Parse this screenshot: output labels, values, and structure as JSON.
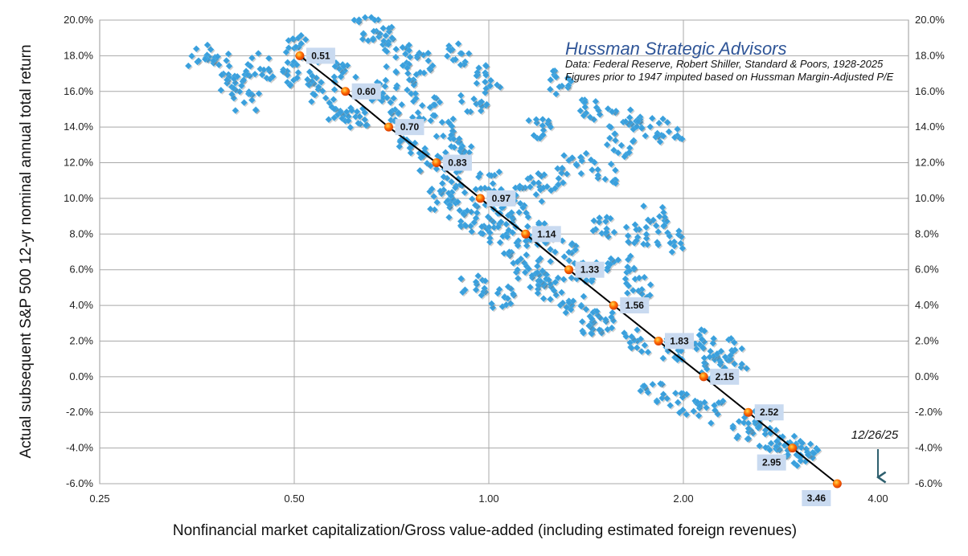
{
  "chart_data": {
    "type": "scatter",
    "title": "Hussman Strategic Advisors",
    "subtitle_lines": [
      "Data: Federal Reserve, Robert Shiller, Standard & Poors, 1928-2025",
      "Figures prior to 1947 imputed based on Hussman Margin-Adjusted P/E"
    ],
    "xlabel": "Nonfinancial market capitalization/Gross value-added (including estimated foreign revenues)",
    "ylabel": "Actual subsequent S&P 500 12-yr nominal annual total return",
    "x_scale": "log2",
    "xlim": [
      0.25,
      4.6
    ],
    "ylim": [
      -6,
      20
    ],
    "x_ticks": [
      "0.25",
      "0.50",
      "1.00",
      "2.00",
      "4.00"
    ],
    "x_tick_values": [
      0.25,
      0.5,
      1,
      2,
      4
    ],
    "y_ticks": [
      "-6.0%",
      "-4.0%",
      "-2.0%",
      "0.0%",
      "2.0%",
      "4.0%",
      "6.0%",
      "8.0%",
      "10.0%",
      "12.0%",
      "14.0%",
      "16.0%",
      "18.0%",
      "20.0%"
    ],
    "y_tick_values": [
      -6,
      -4,
      -2,
      0,
      2,
      4,
      6,
      8,
      10,
      12,
      14,
      16,
      18,
      20
    ],
    "grid": true,
    "colors": {
      "scatter": "#3a9fdc",
      "fit_line": "#000000",
      "fit_point": "#ff5a00",
      "label_bg": "#c9daf0",
      "brand": "#2f5597",
      "arrow": "#2e5f6e"
    },
    "fit_points": [
      {
        "x": 0.51,
        "y": 18,
        "label": "0.51"
      },
      {
        "x": 0.6,
        "y": 16,
        "label": "0.60"
      },
      {
        "x": 0.7,
        "y": 14,
        "label": "0.70"
      },
      {
        "x": 0.83,
        "y": 12,
        "label": "0.83"
      },
      {
        "x": 0.97,
        "y": 10,
        "label": "0.97"
      },
      {
        "x": 1.14,
        "y": 8,
        "label": "1.14"
      },
      {
        "x": 1.33,
        "y": 6,
        "label": "1.33"
      },
      {
        "x": 1.56,
        "y": 4,
        "label": "1.56"
      },
      {
        "x": 1.83,
        "y": 2,
        "label": "1.83"
      },
      {
        "x": 2.15,
        "y": 0,
        "label": "2.15"
      },
      {
        "x": 2.52,
        "y": -2,
        "label": "2.52"
      },
      {
        "x": 2.95,
        "y": -4,
        "label": "2.95"
      },
      {
        "x": 3.46,
        "y": -6,
        "label": "3.46"
      }
    ],
    "observations": [
      [
        0.36,
        18
      ],
      [
        0.38,
        17.5
      ],
      [
        0.4,
        16.5
      ],
      [
        0.42,
        15.5
      ],
      [
        0.44,
        17.5
      ],
      [
        0.47,
        17
      ],
      [
        0.5,
        18.5
      ],
      [
        0.52,
        17
      ],
      [
        0.55,
        16
      ],
      [
        0.58,
        15
      ],
      [
        0.62,
        14.5
      ],
      [
        0.65,
        19.5
      ],
      [
        0.68,
        19
      ],
      [
        0.72,
        18
      ],
      [
        0.75,
        16.5
      ],
      [
        0.8,
        15
      ],
      [
        0.85,
        14
      ],
      [
        0.9,
        13
      ],
      [
        0.6,
        17
      ],
      [
        0.66,
        16
      ],
      [
        0.7,
        15
      ],
      [
        0.76,
        13
      ],
      [
        0.82,
        12
      ],
      [
        0.88,
        11
      ],
      [
        0.78,
        17.5
      ],
      [
        0.9,
        18
      ],
      [
        0.95,
        15.5
      ],
      [
        1.0,
        16.8
      ],
      [
        0.85,
        10
      ],
      [
        0.9,
        9.5
      ],
      [
        0.95,
        8.5
      ],
      [
        1.0,
        9
      ],
      [
        1.05,
        8
      ],
      [
        1.1,
        7
      ],
      [
        1.15,
        6
      ],
      [
        1.2,
        5.5
      ],
      [
        1.25,
        5
      ],
      [
        1.1,
        9.5
      ],
      [
        1.2,
        8
      ],
      [
        1.3,
        7
      ],
      [
        1.35,
        4
      ],
      [
        1.45,
        3
      ],
      [
        1.4,
        6
      ],
      [
        0.95,
        5
      ],
      [
        1.05,
        4.5
      ],
      [
        1.0,
        11
      ],
      [
        1.15,
        10.5
      ],
      [
        1.25,
        11
      ],
      [
        1.35,
        12
      ],
      [
        1.5,
        11.5
      ],
      [
        1.3,
        16.5
      ],
      [
        1.45,
        15
      ],
      [
        1.6,
        14.5
      ],
      [
        1.75,
        14
      ],
      [
        1.9,
        13.8
      ],
      [
        1.6,
        13
      ],
      [
        1.2,
        14
      ],
      [
        1.5,
        8.5
      ],
      [
        1.7,
        8
      ],
      [
        1.8,
        9
      ],
      [
        1.9,
        7.5
      ],
      [
        1.6,
        6.5
      ],
      [
        1.7,
        5
      ],
      [
        1.5,
        3
      ],
      [
        1.7,
        2
      ],
      [
        1.9,
        1.5
      ],
      [
        2.1,
        2
      ],
      [
        2.3,
        1.5
      ],
      [
        2.4,
        1
      ],
      [
        2.2,
        0.5
      ],
      [
        1.8,
        -1
      ],
      [
        2.0,
        -1.5
      ],
      [
        2.2,
        -2
      ],
      [
        2.5,
        -3
      ],
      [
        2.7,
        -3.5
      ],
      [
        2.9,
        -3.8
      ],
      [
        3.0,
        -4.2
      ],
      [
        3.1,
        -4.5
      ],
      [
        2.6,
        -2.5
      ]
    ],
    "annotation": {
      "text": "12/26/25",
      "x": 4.0
    }
  }
}
